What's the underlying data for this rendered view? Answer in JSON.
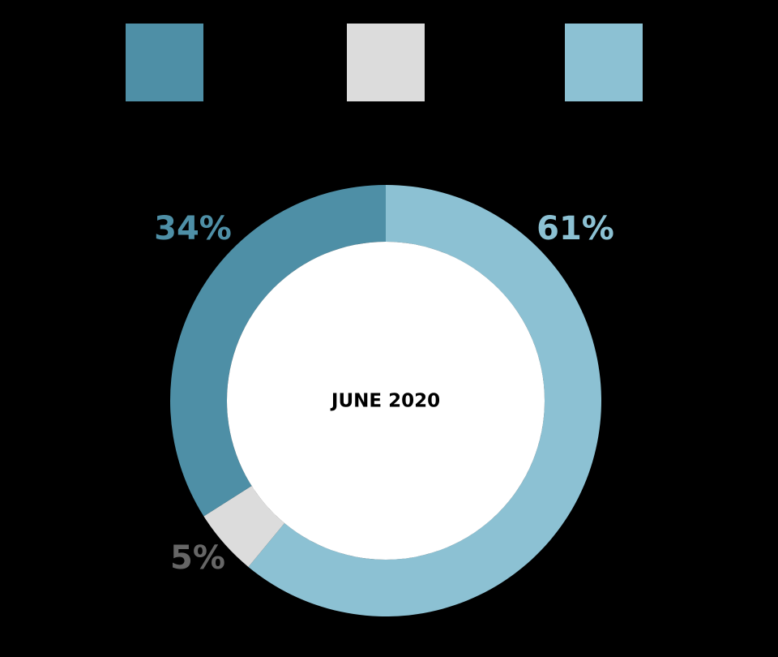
{
  "chart_data": {
    "type": "pie",
    "center_label": "JUNE 2020",
    "slices": [
      {
        "value": 61,
        "label": "61%",
        "color": "#8cc1d3"
      },
      {
        "value": 5,
        "label": "5%",
        "color": "#dcdcdc",
        "label_color": "#666666"
      },
      {
        "value": 34,
        "label": "34%",
        "color": "#4e8fa6"
      }
    ],
    "legend": [
      {
        "color": "#4e8fa6"
      },
      {
        "color": "#dcdcdc"
      },
      {
        "color": "#8cc1d3"
      }
    ],
    "background": "#000000",
    "hole_color": "#ffffff"
  }
}
